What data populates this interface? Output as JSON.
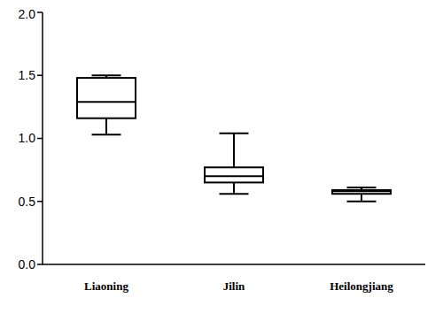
{
  "chart_data": {
    "type": "box",
    "categories": [
      "Liaoning",
      "Jilin",
      "Heilongjiang"
    ],
    "min": [
      1.03,
      0.56,
      0.5
    ],
    "q1": [
      1.16,
      0.65,
      0.56
    ],
    "median": [
      1.29,
      0.7,
      0.58
    ],
    "q3": [
      1.48,
      0.77,
      0.59
    ],
    "max": [
      1.5,
      1.04,
      0.61
    ],
    "color": "#000000",
    "ylim": [
      0,
      2
    ],
    "yticks": [
      {
        "value": 0,
        "label": "0.0"
      },
      0.5,
      {
        "value": 1,
        "label": "1.0"
      },
      1.5,
      {
        "value": 2,
        "label": "2.0"
      }
    ]
  }
}
